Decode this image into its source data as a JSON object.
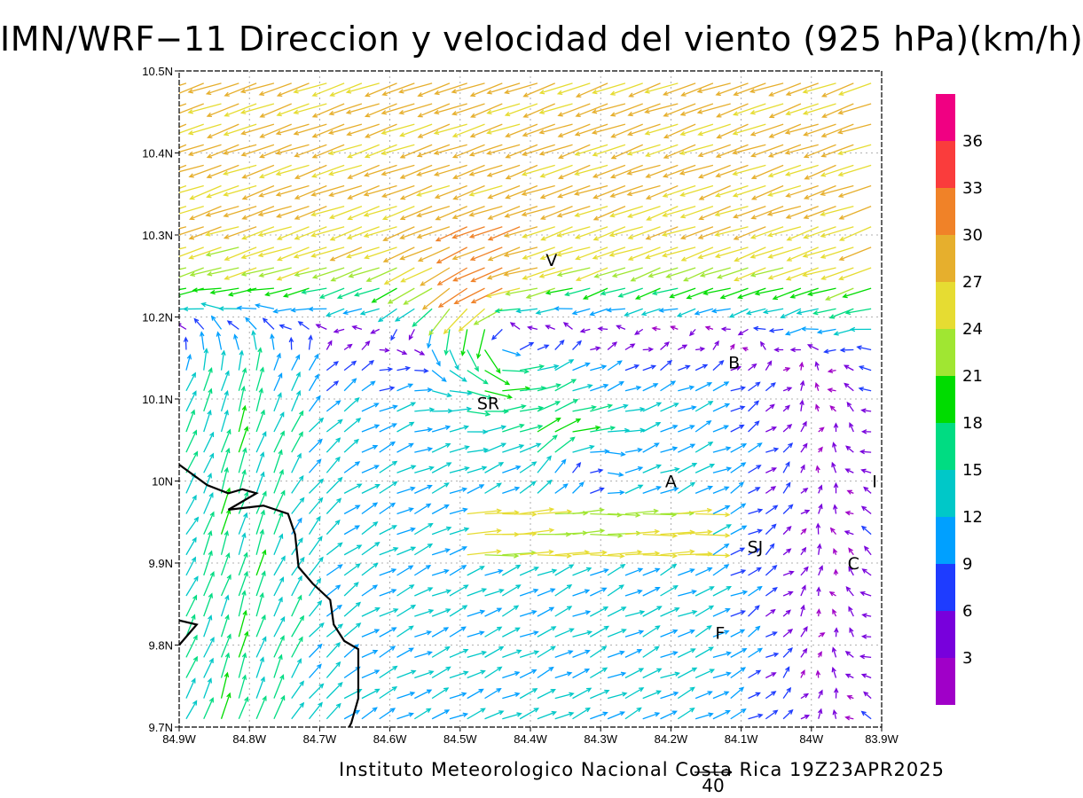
{
  "title": "IMN/WRF−11 Direccion y velocidad del viento (925 hPa)(km/h)",
  "credit": "Instituto Meteorologico Nacional Costa Rica 19Z23APR2025",
  "reference_vector": {
    "label": "40",
    "value": 40
  },
  "map": {
    "lon_min": -84.9,
    "lon_max": -83.9,
    "lat_min": 9.7,
    "lat_max": 10.5,
    "grid": true,
    "x_tick_labels": [
      "84.9W",
      "84.8W",
      "84.7W",
      "84.6W",
      "84.5W",
      "84.4W",
      "84.3W",
      "84.2W",
      "84.1W",
      "84W",
      "83.9W"
    ],
    "y_tick_labels": [
      "9.7N",
      "9.8N",
      "9.9N",
      "10N",
      "10.1N",
      "10.2N",
      "10.3N",
      "10.4N",
      "10.5N"
    ],
    "coastline_color": "#000000"
  },
  "places": [
    {
      "label": "V",
      "lon": -84.37,
      "lat": 10.27
    },
    {
      "label": "SR",
      "lon": -84.46,
      "lat": 10.095
    },
    {
      "label": "B",
      "lon": -84.11,
      "lat": 10.145
    },
    {
      "label": "A",
      "lon": -84.2,
      "lat": 10.0
    },
    {
      "label": "I",
      "lon": -83.91,
      "lat": 10.0
    },
    {
      "label": "SJ",
      "lon": -84.08,
      "lat": 9.92
    },
    {
      "label": "C",
      "lon": -83.94,
      "lat": 9.9
    },
    {
      "label": "F",
      "lon": -84.13,
      "lat": 9.815
    }
  ],
  "colorbar": {
    "labels": [
      "3",
      "6",
      "9",
      "12",
      "15",
      "18",
      "21",
      "24",
      "27",
      "30",
      "33",
      "36"
    ],
    "colors": [
      "#a000c8",
      "#7800dc",
      "#1e3cff",
      "#00a0ff",
      "#00c8c8",
      "#00dc82",
      "#00dc00",
      "#a0e632",
      "#e6dc32",
      "#e6af2d",
      "#f08228",
      "#fa3c3c",
      "#f00082"
    ]
  }
}
